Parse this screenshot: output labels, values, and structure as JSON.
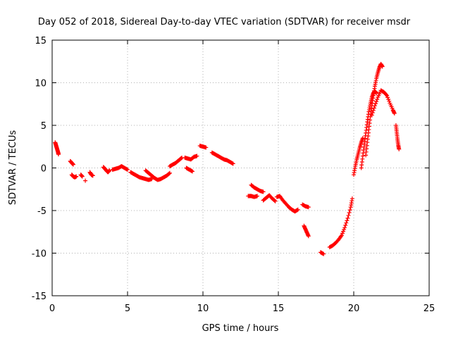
{
  "chart_data": {
    "type": "scatter",
    "title": "Day 052 of 2018, Sidereal Day-to-day VTEC variation (SDTVAR) for receiver msdr",
    "xlabel": "GPS time / hours",
    "ylabel": "SDTVAR / TECUs",
    "xlim": [
      0,
      25
    ],
    "ylim": [
      -15,
      15
    ],
    "x_ticks": [
      "0",
      "5",
      "10",
      "15",
      "20",
      "25"
    ],
    "y_ticks": [
      "-15",
      "-10",
      "-5",
      "0",
      "5",
      "10",
      "15"
    ],
    "grid": true,
    "marker": "+",
    "marker_color": "#ff0000",
    "series": [
      {
        "name": "seg1",
        "points": [
          [
            0.2,
            3.0
          ],
          [
            0.25,
            2.7
          ],
          [
            0.3,
            2.4
          ],
          [
            0.35,
            2.1
          ],
          [
            0.4,
            1.8
          ],
          [
            0.42,
            1.6
          ]
        ]
      },
      {
        "name": "seg2",
        "points": [
          [
            1.2,
            0.8
          ],
          [
            1.3,
            0.6
          ],
          [
            1.4,
            0.4
          ]
        ]
      },
      {
        "name": "seg3",
        "points": [
          [
            1.3,
            -0.8
          ],
          [
            1.4,
            -1.0
          ],
          [
            1.5,
            -1.1
          ],
          [
            1.6,
            -1.0
          ]
        ]
      },
      {
        "name": "seg4",
        "points": [
          [
            1.9,
            -0.8
          ],
          [
            2.0,
            -1.0
          ]
        ]
      },
      {
        "name": "seg5",
        "points": [
          [
            2.2,
            -1.5
          ]
        ]
      },
      {
        "name": "seg6",
        "points": [
          [
            2.5,
            -0.5
          ],
          [
            2.6,
            -0.8
          ],
          [
            2.7,
            -0.9
          ]
        ]
      },
      {
        "name": "seg7",
        "points": [
          [
            3.4,
            0.1
          ],
          [
            3.5,
            -0.1
          ],
          [
            3.6,
            -0.3
          ],
          [
            3.7,
            -0.5
          ],
          [
            3.8,
            -0.3
          ]
        ]
      },
      {
        "name": "seg8",
        "points": [
          [
            4.0,
            -0.2
          ],
          [
            4.2,
            -0.1
          ],
          [
            4.4,
            0.0
          ],
          [
            4.6,
            0.2
          ],
          [
            4.8,
            0.0
          ],
          [
            5.0,
            -0.2
          ]
        ]
      },
      {
        "name": "seg9",
        "points": [
          [
            5.2,
            -0.5
          ],
          [
            5.4,
            -0.7
          ],
          [
            5.6,
            -0.9
          ],
          [
            5.8,
            -1.1
          ],
          [
            6.0,
            -1.2
          ],
          [
            6.2,
            -1.3
          ],
          [
            6.4,
            -1.4
          ],
          [
            6.6,
            -1.3
          ]
        ]
      },
      {
        "name": "seg10",
        "points": [
          [
            6.2,
            -0.3
          ],
          [
            6.4,
            -0.6
          ],
          [
            6.6,
            -0.9
          ],
          [
            6.8,
            -1.2
          ],
          [
            7.0,
            -1.4
          ],
          [
            7.2,
            -1.3
          ],
          [
            7.4,
            -1.1
          ],
          [
            7.6,
            -0.9
          ],
          [
            7.8,
            -0.6
          ]
        ]
      },
      {
        "name": "seg11",
        "points": [
          [
            7.8,
            0.2
          ],
          [
            8.0,
            0.4
          ],
          [
            8.2,
            0.6
          ],
          [
            8.4,
            0.9
          ],
          [
            8.6,
            1.2
          ]
        ]
      },
      {
        "name": "seg12",
        "points": [
          [
            8.8,
            1.2
          ],
          [
            9.0,
            1.1
          ],
          [
            9.2,
            1.0
          ],
          [
            9.4,
            1.3
          ],
          [
            9.6,
            1.4
          ]
        ]
      },
      {
        "name": "seg13",
        "points": [
          [
            8.9,
            0.0
          ],
          [
            9.1,
            -0.2
          ],
          [
            9.3,
            -0.4
          ]
        ]
      },
      {
        "name": "seg14",
        "points": [
          [
            9.8,
            2.6
          ],
          [
            10.0,
            2.5
          ],
          [
            10.2,
            2.4
          ]
        ]
      },
      {
        "name": "seg15",
        "points": [
          [
            10.6,
            1.8
          ],
          [
            10.8,
            1.6
          ],
          [
            11.0,
            1.4
          ],
          [
            11.2,
            1.2
          ],
          [
            11.4,
            1.0
          ],
          [
            11.6,
            0.9
          ],
          [
            11.8,
            0.7
          ],
          [
            12.0,
            0.5
          ]
        ]
      },
      {
        "name": "seg16",
        "points": [
          [
            13.2,
            -2.0
          ],
          [
            13.4,
            -2.3
          ],
          [
            13.6,
            -2.5
          ],
          [
            13.8,
            -2.7
          ],
          [
            14.0,
            -2.8
          ]
        ]
      },
      {
        "name": "seg17",
        "points": [
          [
            13.0,
            -3.3
          ],
          [
            13.2,
            -3.3
          ],
          [
            13.4,
            -3.4
          ],
          [
            13.6,
            -3.3
          ]
        ]
      },
      {
        "name": "seg18",
        "points": [
          [
            14.0,
            -3.8
          ],
          [
            14.2,
            -3.5
          ],
          [
            14.4,
            -3.2
          ],
          [
            14.6,
            -3.6
          ],
          [
            14.8,
            -3.9
          ]
        ]
      },
      {
        "name": "seg19",
        "points": [
          [
            14.9,
            -3.4
          ],
          [
            15.1,
            -3.3
          ],
          [
            15.3,
            -3.8
          ],
          [
            15.5,
            -4.2
          ],
          [
            15.7,
            -4.6
          ],
          [
            15.9,
            -4.9
          ],
          [
            16.1,
            -5.1
          ],
          [
            16.3,
            -4.9
          ]
        ]
      },
      {
        "name": "seg20",
        "points": [
          [
            16.6,
            -4.3
          ],
          [
            16.8,
            -4.5
          ],
          [
            17.0,
            -4.6
          ]
        ]
      },
      {
        "name": "seg21",
        "points": [
          [
            16.7,
            -6.8
          ],
          [
            16.8,
            -7.2
          ],
          [
            16.9,
            -7.6
          ],
          [
            17.0,
            -8.0
          ]
        ]
      },
      {
        "name": "seg22",
        "points": [
          [
            17.8,
            -9.9
          ],
          [
            18.0,
            -10.1
          ]
        ]
      },
      {
        "name": "seg23",
        "points": [
          [
            18.4,
            -9.3
          ],
          [
            18.6,
            -9.1
          ],
          [
            18.8,
            -8.8
          ],
          [
            19.0,
            -8.4
          ],
          [
            19.2,
            -7.9
          ],
          [
            19.4,
            -7.0
          ],
          [
            19.6,
            -5.9
          ],
          [
            19.8,
            -4.6
          ],
          [
            19.9,
            -3.6
          ]
        ]
      },
      {
        "name": "seg24",
        "points": [
          [
            20.0,
            -0.8
          ],
          [
            20.1,
            0.2
          ],
          [
            20.2,
            1.0
          ],
          [
            20.3,
            1.7
          ],
          [
            20.4,
            2.4
          ],
          [
            20.5,
            3.0
          ],
          [
            20.6,
            3.5
          ]
        ]
      },
      {
        "name": "seg25",
        "points": [
          [
            20.5,
            0.0
          ],
          [
            20.6,
            1.4
          ],
          [
            20.7,
            2.8
          ],
          [
            20.8,
            4.1
          ],
          [
            20.9,
            5.4
          ],
          [
            21.0,
            6.6
          ],
          [
            21.1,
            7.5
          ],
          [
            21.2,
            8.3
          ],
          [
            21.3,
            8.8
          ],
          [
            21.4,
            9.0
          ],
          [
            21.5,
            8.8
          ]
        ]
      },
      {
        "name": "seg26",
        "points": [
          [
            20.8,
            1.5
          ],
          [
            20.9,
            3.0
          ],
          [
            21.0,
            4.5
          ],
          [
            21.1,
            6.0
          ],
          [
            21.2,
            7.3
          ],
          [
            21.3,
            8.5
          ],
          [
            21.4,
            9.6
          ],
          [
            21.5,
            10.5
          ],
          [
            21.6,
            11.2
          ],
          [
            21.7,
            11.8
          ],
          [
            21.8,
            12.2
          ],
          [
            21.9,
            11.9
          ]
        ]
      },
      {
        "name": "seg27",
        "points": [
          [
            21.2,
            6.2
          ],
          [
            21.4,
            7.3
          ],
          [
            21.6,
            8.3
          ],
          [
            21.8,
            9.1
          ],
          [
            22.0,
            8.9
          ],
          [
            22.2,
            8.5
          ],
          [
            22.4,
            7.6
          ],
          [
            22.6,
            6.8
          ],
          [
            22.7,
            6.4
          ]
        ]
      },
      {
        "name": "seg28",
        "points": [
          [
            22.8,
            5.0
          ],
          [
            22.85,
            4.2
          ],
          [
            22.9,
            3.4
          ],
          [
            22.95,
            2.7
          ],
          [
            23.0,
            2.2
          ]
        ]
      }
    ]
  }
}
